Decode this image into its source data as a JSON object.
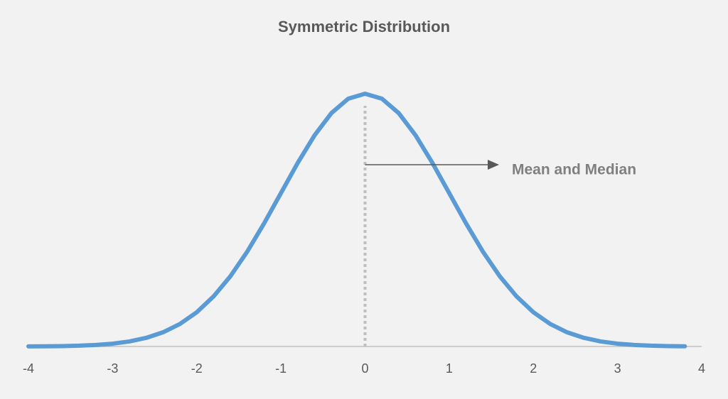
{
  "chart_data": {
    "type": "line",
    "title": "Symmetric Distribution",
    "x": [
      -4,
      -3.8,
      -3.6,
      -3.4,
      -3.2,
      -3,
      -2.8,
      -2.6,
      -2.4,
      -2.2,
      -2,
      -1.8,
      -1.6,
      -1.4,
      -1.2,
      -1,
      -0.8,
      -0.6,
      -0.4,
      -0.2,
      0,
      0.2,
      0.4,
      0.6,
      0.8,
      1,
      1.2,
      1.4,
      1.6,
      1.8,
      2,
      2.2,
      2.4,
      2.6,
      2.8,
      3,
      3.2,
      3.4,
      3.6,
      3.8
    ],
    "values": [
      0.0001,
      0.0003,
      0.0006,
      0.0012,
      0.0024,
      0.0044,
      0.0079,
      0.0136,
      0.0224,
      0.0355,
      0.054,
      0.079,
      0.1109,
      0.1497,
      0.1942,
      0.242,
      0.2897,
      0.3332,
      0.3683,
      0.391,
      0.3989,
      0.391,
      0.3683,
      0.3332,
      0.2897,
      0.242,
      0.1942,
      0.1497,
      0.1109,
      0.079,
      0.054,
      0.0355,
      0.0224,
      0.0136,
      0.0079,
      0.0044,
      0.0024,
      0.0012,
      0.0006,
      0.0003
    ],
    "color": "#5b9bd5",
    "xlim": [
      -4,
      4
    ],
    "xticks": [
      -4,
      -3,
      -2,
      -1,
      0,
      1,
      2,
      3,
      4
    ],
    "ylim": [
      0,
      0.4
    ],
    "reference_line": {
      "x": 0,
      "label": "Mean and Median"
    }
  }
}
